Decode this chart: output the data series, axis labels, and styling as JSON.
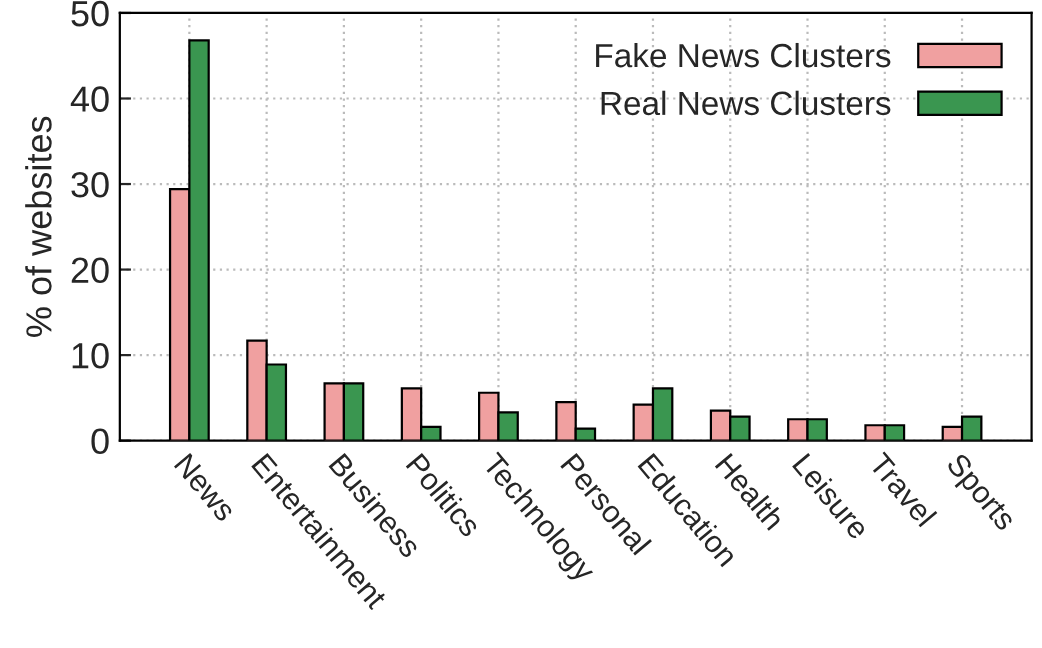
{
  "chart_data": {
    "type": "bar",
    "ylabel": "% of websites",
    "categories": [
      "News",
      "Entertainment",
      "Business",
      "Politics",
      "Technology",
      "Personal",
      "Education",
      "Health",
      "Leisure",
      "Travel",
      "Sports"
    ],
    "series": [
      {
        "name": "Fake News Clusters",
        "color": "#f0a0a0",
        "values": [
          29.4,
          11.7,
          6.7,
          6.1,
          5.6,
          4.5,
          4.2,
          3.5,
          2.5,
          1.8,
          1.6
        ]
      },
      {
        "name": "Real News Clusters",
        "color": "#3a9650",
        "values": [
          46.8,
          8.9,
          6.7,
          1.6,
          3.3,
          1.4,
          6.1,
          2.8,
          2.5,
          1.8,
          2.8
        ]
      }
    ],
    "ylim": [
      0,
      50
    ],
    "yticks": [
      0,
      10,
      20,
      30,
      40,
      50
    ],
    "grid": true,
    "legend": "top right"
  }
}
